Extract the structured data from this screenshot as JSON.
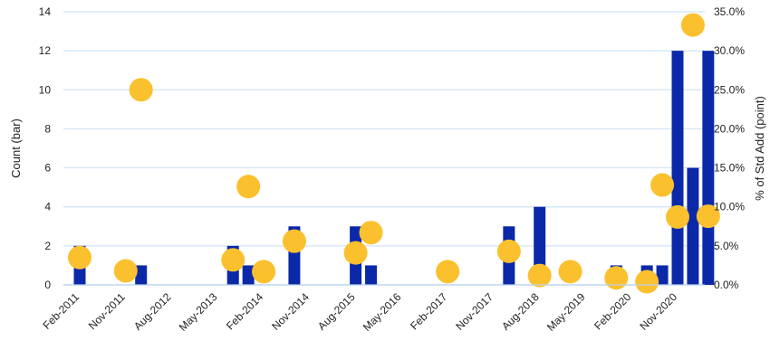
{
  "chart_data": {
    "type": "bar",
    "title": "",
    "ylabel_left": "Count (bar)",
    "ylabel_right": "% of Std Add (point)",
    "ylim_left": [
      0,
      14
    ],
    "ylim_right": [
      0,
      35
    ],
    "left_ticks": [
      "0",
      "2",
      "4",
      "6",
      "8",
      "10",
      "12",
      "14"
    ],
    "right_ticks": [
      "0.0%",
      "5.0%",
      "10.0%",
      "15.0%",
      "20.0%",
      "25.0%",
      "30.0%",
      "35.0%"
    ],
    "x_tick_labels": [
      "Feb-2011",
      "Nov-2011",
      "Aug-2012",
      "May-2013",
      "Feb-2014",
      "Nov-2014",
      "Aug-2015",
      "May-2016",
      "Feb-2017",
      "Nov-2017",
      "Aug-2018",
      "May-2019",
      "Feb-2020",
      "Nov-2020"
    ],
    "grid": true,
    "bar_color": "#0A28A8",
    "point_color": "#FBC02D",
    "series": [
      {
        "name": "Count",
        "kind": "bar",
        "x": [
          "Feb-2011",
          "Nov-2011",
          "Feb-2012",
          "Aug-2013",
          "Nov-2013",
          "Aug-2014",
          "Aug-2015",
          "Nov-2015",
          "Feb-2018",
          "Aug-2018",
          "Nov-2019",
          "May-2020",
          "Aug-2020",
          "Nov-2020",
          "Feb-2021",
          "May-2021"
        ],
        "values": [
          2,
          0,
          1,
          2,
          1,
          3,
          3,
          1,
          3,
          4,
          1,
          1,
          1,
          12,
          6,
          12
        ]
      },
      {
        "name": "% of Std Add",
        "kind": "point",
        "x": [
          "Feb-2011",
          "Nov-2011",
          "Feb-2012",
          "Aug-2013",
          "Nov-2013",
          "Feb-2014",
          "Aug-2014",
          "Aug-2015",
          "Nov-2015",
          "Feb-2017",
          "Feb-2018",
          "Aug-2018",
          "Feb-2019",
          "Nov-2019",
          "May-2020",
          "Aug-2020",
          "Nov-2020",
          "Feb-2021",
          "May-2021"
        ],
        "values": [
          3.5,
          1.8,
          25.0,
          3.2,
          12.6,
          1.7,
          5.6,
          4.1,
          6.7,
          1.7,
          4.3,
          1.2,
          1.7,
          0.9,
          0.4,
          12.8,
          8.7,
          33.3,
          8.8
        ]
      }
    ]
  }
}
